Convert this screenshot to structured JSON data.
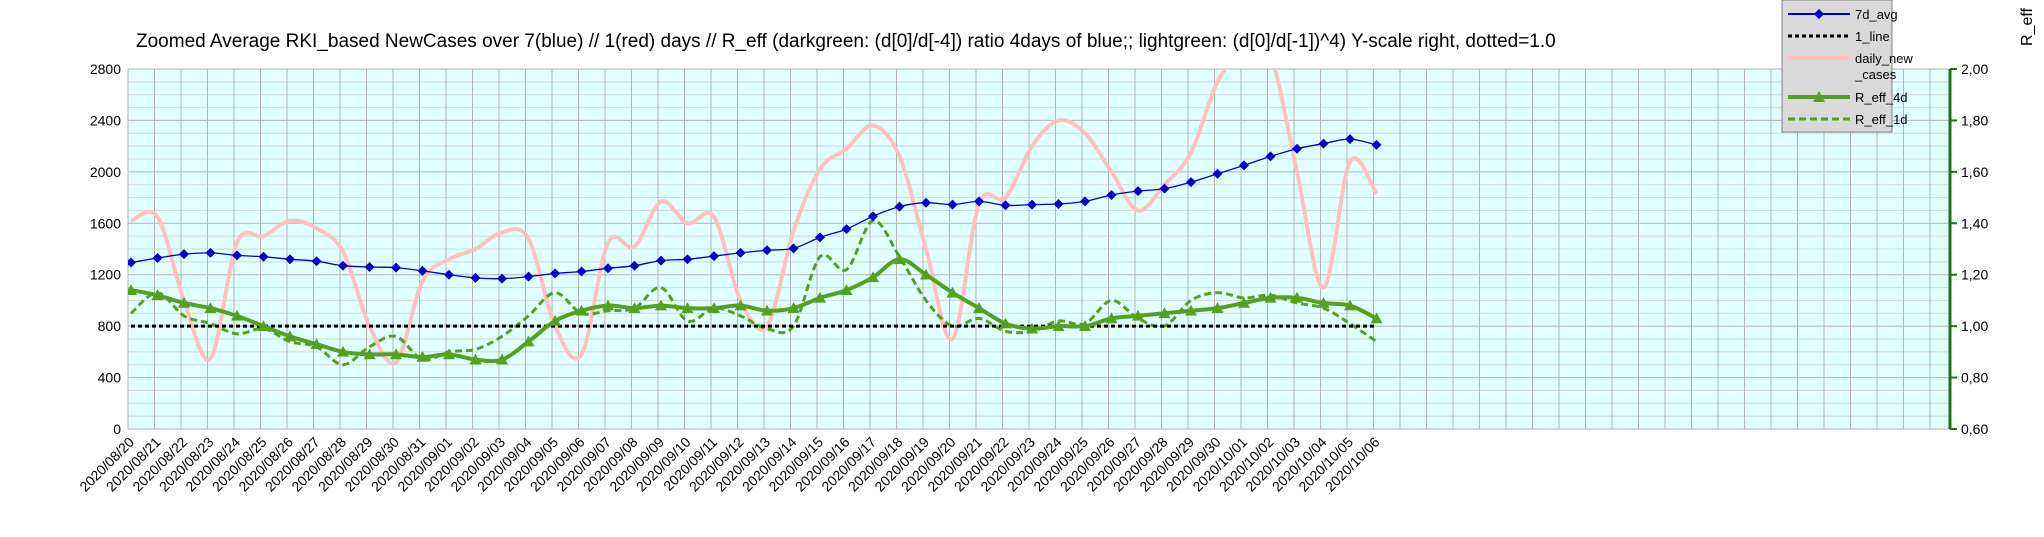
{
  "chart_data": {
    "type": "line",
    "title": "Zoomed Average RKI_based NewCases over 7(blue) // 1(red) days //  R_eff (darkgreen: (d[0]/d[-4]) ratio 4days of blue;; lightgreen: (d[0]/d[-1])^4) Y-scale right, dotted=1.0",
    "y_right_label": "R_eff",
    "grid": true,
    "legend_position": "top-right",
    "y_left": {
      "min": 0,
      "max": 2800,
      "ticks": [
        "0",
        "400",
        "800",
        "1200",
        "1600",
        "2000",
        "2400",
        "2800"
      ]
    },
    "y_right": {
      "min": 0.6,
      "max": 2.0,
      "ticks": [
        "0,60",
        "0,80",
        "1,00",
        "1,20",
        "1,40",
        "1,60",
        "1,80",
        "2,00"
      ]
    },
    "categories": [
      "2020/08/20",
      "2020/08/21",
      "2020/08/22",
      "2020/08/23",
      "2020/08/24",
      "2020/08/25",
      "2020/08/26",
      "2020/08/27",
      "2020/08/28",
      "2020/08/29",
      "2020/08/30",
      "2020/08/31",
      "2020/09/01",
      "2020/09/02",
      "2020/09/03",
      "2020/09/04",
      "2020/09/05",
      "2020/09/06",
      "2020/09/07",
      "2020/09/08",
      "2020/09/09",
      "2020/09/10",
      "2020/09/11",
      "2020/09/12",
      "2020/09/13",
      "2020/09/14",
      "2020/09/15",
      "2020/09/16",
      "2020/09/17",
      "2020/09/18",
      "2020/09/19",
      "2020/09/20",
      "2020/09/21",
      "2020/09/22",
      "2020/09/23",
      "2020/09/24",
      "2020/09/25",
      "2020/09/26",
      "2020/09/27",
      "2020/09/28",
      "2020/09/29",
      "2020/09/30",
      "2020/10/01",
      "2020/10/02",
      "2020/10/03",
      "2020/10/04",
      "2020/10/05",
      "2020/10/06"
    ],
    "series": [
      {
        "name": "7d_avg",
        "axis": "left",
        "color": "#0000cc",
        "marker": "diamond",
        "values": [
          1295,
          1330,
          1360,
          1370,
          1350,
          1340,
          1320,
          1305,
          1270,
          1260,
          1255,
          1230,
          1200,
          1175,
          1170,
          1185,
          1210,
          1225,
          1250,
          1270,
          1310,
          1320,
          1345,
          1370,
          1390,
          1405,
          1490,
          1555,
          1655,
          1730,
          1760,
          1745,
          1770,
          1740,
          1745,
          1750,
          1770,
          1820,
          1850,
          1870,
          1920,
          1985,
          2050,
          2120,
          2180,
          2220,
          2255,
          2210
        ]
      },
      {
        "name": "1_line",
        "axis": "right",
        "color": "#000000",
        "style": "dotted",
        "values": [
          1.0,
          1.0,
          1.0,
          1.0,
          1.0,
          1.0,
          1.0,
          1.0,
          1.0,
          1.0,
          1.0,
          1.0,
          1.0,
          1.0,
          1.0,
          1.0,
          1.0,
          1.0,
          1.0,
          1.0,
          1.0,
          1.0,
          1.0,
          1.0,
          1.0,
          1.0,
          1.0,
          1.0,
          1.0,
          1.0,
          1.0,
          1.0,
          1.0,
          1.0,
          1.0,
          1.0,
          1.0,
          1.0,
          1.0,
          1.0,
          1.0,
          1.0,
          1.0,
          1.0,
          1.0,
          1.0,
          1.0,
          1.0
        ]
      },
      {
        "name": "daily_new_cases",
        "axis": "left",
        "color": "#ffc0c0",
        "values": [
          1620,
          1650,
          1000,
          550,
          1450,
          1500,
          1620,
          1560,
          1380,
          800,
          520,
          1150,
          1320,
          1400,
          1530,
          1480,
          800,
          580,
          1450,
          1420,
          1770,
          1600,
          1650,
          1000,
          800,
          1540,
          2020,
          2180,
          2360,
          2120,
          1400,
          700,
          1750,
          1800,
          2200,
          2400,
          2300,
          2000,
          1700,
          1900,
          2150,
          2700,
          2950,
          2900,
          2000,
          1100,
          2080,
          1830
        ]
      },
      {
        "name": "R_eff_4d",
        "axis": "right",
        "color": "#55a020",
        "marker": "triangle",
        "values": [
          1.14,
          1.12,
          1.09,
          1.07,
          1.04,
          1.0,
          0.96,
          0.93,
          0.9,
          0.89,
          0.89,
          0.88,
          0.89,
          0.87,
          0.87,
          0.94,
          1.02,
          1.06,
          1.08,
          1.07,
          1.08,
          1.07,
          1.07,
          1.08,
          1.06,
          1.07,
          1.11,
          1.14,
          1.19,
          1.26,
          1.2,
          1.13,
          1.07,
          1.01,
          0.99,
          1.0,
          1.0,
          1.03,
          1.04,
          1.05,
          1.06,
          1.07,
          1.09,
          1.11,
          1.11,
          1.09,
          1.08,
          1.03
        ]
      },
      {
        "name": "R_eff_1d",
        "axis": "right",
        "color": "#55a020",
        "style": "dashed",
        "values": [
          1.05,
          1.13,
          1.04,
          1.01,
          0.97,
          0.99,
          0.94,
          0.92,
          0.85,
          0.92,
          0.96,
          0.87,
          0.9,
          0.91,
          0.96,
          1.04,
          1.13,
          1.05,
          1.06,
          1.07,
          1.15,
          1.02,
          1.07,
          1.04,
          0.99,
          1.0,
          1.27,
          1.22,
          1.41,
          1.27,
          1.1,
          1.0,
          1.03,
          0.98,
          0.98,
          1.02,
          1.01,
          1.1,
          1.03,
          1.0,
          1.1,
          1.13,
          1.11,
          1.12,
          1.09,
          1.07,
          1.01,
          0.94
        ]
      }
    ]
  }
}
